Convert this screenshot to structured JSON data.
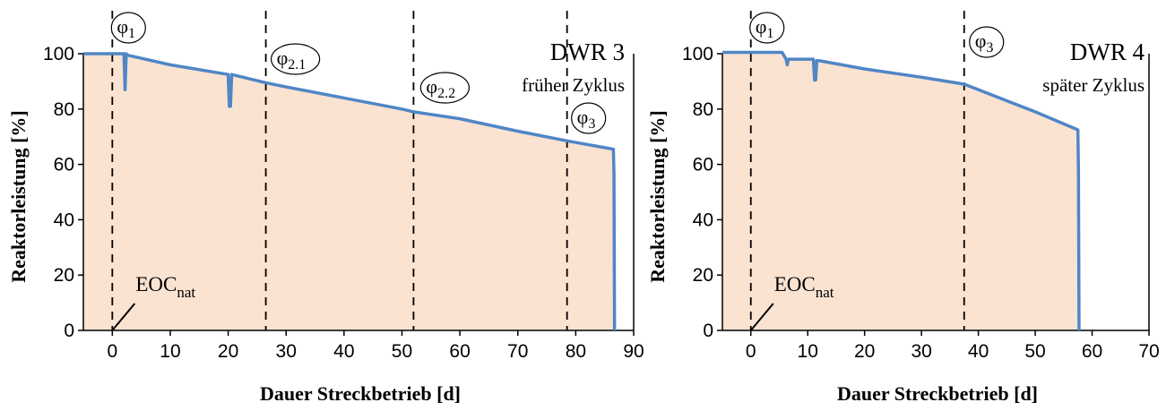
{
  "chart_data": [
    {
      "type": "area",
      "title": "DWR 3",
      "subtitle": "früher Zyklus",
      "xlabel": "Dauer Streckbetrieb [d]",
      "ylabel": "Reaktorleistung [%]",
      "xlim": [
        -5,
        90
      ],
      "ylim": [
        0,
        100
      ],
      "xticks": [
        0,
        10,
        20,
        30,
        40,
        50,
        60,
        70,
        80,
        90
      ],
      "yticks": [
        0,
        20,
        40,
        60,
        80,
        100
      ],
      "grid": false,
      "colors": {
        "line": "#4f86c6",
        "fill": "#fbe3d1"
      },
      "series": [
        {
          "x": [
            -5,
            2,
            2.2,
            2.4,
            2.6,
            10,
            20,
            20.2,
            20.4,
            20.6,
            26.5,
            30,
            40,
            50,
            52,
            60,
            70,
            78.5,
            86.5,
            86.6,
            86.7
          ],
          "y": [
            100,
            100,
            87,
            100,
            99.5,
            96,
            92.5,
            81,
            81,
            92.5,
            89.5,
            88,
            84,
            80,
            79,
            76.5,
            72,
            68.5,
            65.5,
            57,
            0
          ]
        }
      ],
      "annotations": [
        {
          "text": "φ",
          "sub": "1",
          "x": 0
        },
        {
          "text": "φ",
          "sub": "2.1",
          "x": 26.5
        },
        {
          "text": "φ",
          "sub": "2.2",
          "x": 52
        },
        {
          "text": "φ",
          "sub": "3",
          "x": 78.5
        },
        {
          "text": "EOC",
          "sub": "nat",
          "x": 0,
          "y": 0
        }
      ]
    },
    {
      "type": "area",
      "title": "DWR 4",
      "subtitle": "später Zyklus",
      "xlabel": "Dauer Streckbetrieb [d]",
      "ylabel": "Reaktorleistung [%]",
      "xlim": [
        -5,
        70
      ],
      "ylim": [
        0,
        100
      ],
      "xticks": [
        0,
        10,
        20,
        30,
        40,
        50,
        60,
        70
      ],
      "yticks": [
        0,
        20,
        40,
        60,
        80,
        100
      ],
      "grid": false,
      "colors": {
        "line": "#4f86c6",
        "fill": "#fbe3d1"
      },
      "series": [
        {
          "x": [
            -5,
            5.5,
            6.2,
            6.4,
            6.6,
            11,
            11.2,
            11.4,
            11.6,
            12,
            20,
            30,
            37.5,
            40,
            50,
            57.5,
            57.6,
            57.7
          ],
          "y": [
            100.5,
            100.5,
            98,
            96,
            98,
            98,
            90.5,
            90.5,
            97.5,
            97.5,
            94.5,
            91.5,
            89,
            87,
            79,
            72.5,
            57,
            0
          ]
        }
      ],
      "annotations": [
        {
          "text": "φ",
          "sub": "1",
          "x": 0
        },
        {
          "text": "φ",
          "sub": "3",
          "x": 37.5
        },
        {
          "text": "EOC",
          "sub": "nat",
          "x": 0,
          "y": 0
        }
      ]
    }
  ]
}
